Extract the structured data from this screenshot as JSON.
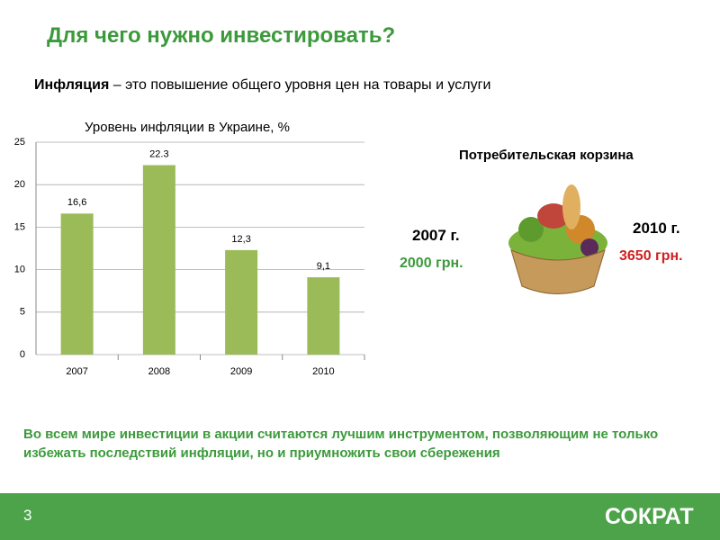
{
  "title": "Для чего нужно инвестировать?",
  "definition": {
    "term": "Инфляция",
    "text": " – это повышение общего уровня цен на товары и услуги"
  },
  "chart_data": {
    "type": "bar",
    "title": "Уровень инфляции в Украине, %",
    "categories": [
      "2007",
      "2008",
      "2009",
      "2010"
    ],
    "values": [
      16.6,
      22.3,
      12.3,
      9.1
    ],
    "value_labels": [
      "16,6",
      "22.3",
      "12,3",
      "9,1"
    ],
    "color": "#9bbb59",
    "ylim": [
      0,
      25
    ],
    "yticks": [
      0,
      5,
      10,
      15,
      20,
      25
    ],
    "grid": true
  },
  "basket": {
    "title": "Потребительская корзина",
    "left": {
      "year": "2007 г.",
      "price": "2000 грн."
    },
    "right": {
      "year": "2010 г.",
      "price": "3650 грн."
    }
  },
  "conclusion": "Во всем мире инвестиции в акции считаются лучшим инструментом, позволяющим не только избежать последствий инфляции, но и приумножить свои сбережения",
  "footer": {
    "page": "3",
    "logo": "СОКРАТ"
  }
}
